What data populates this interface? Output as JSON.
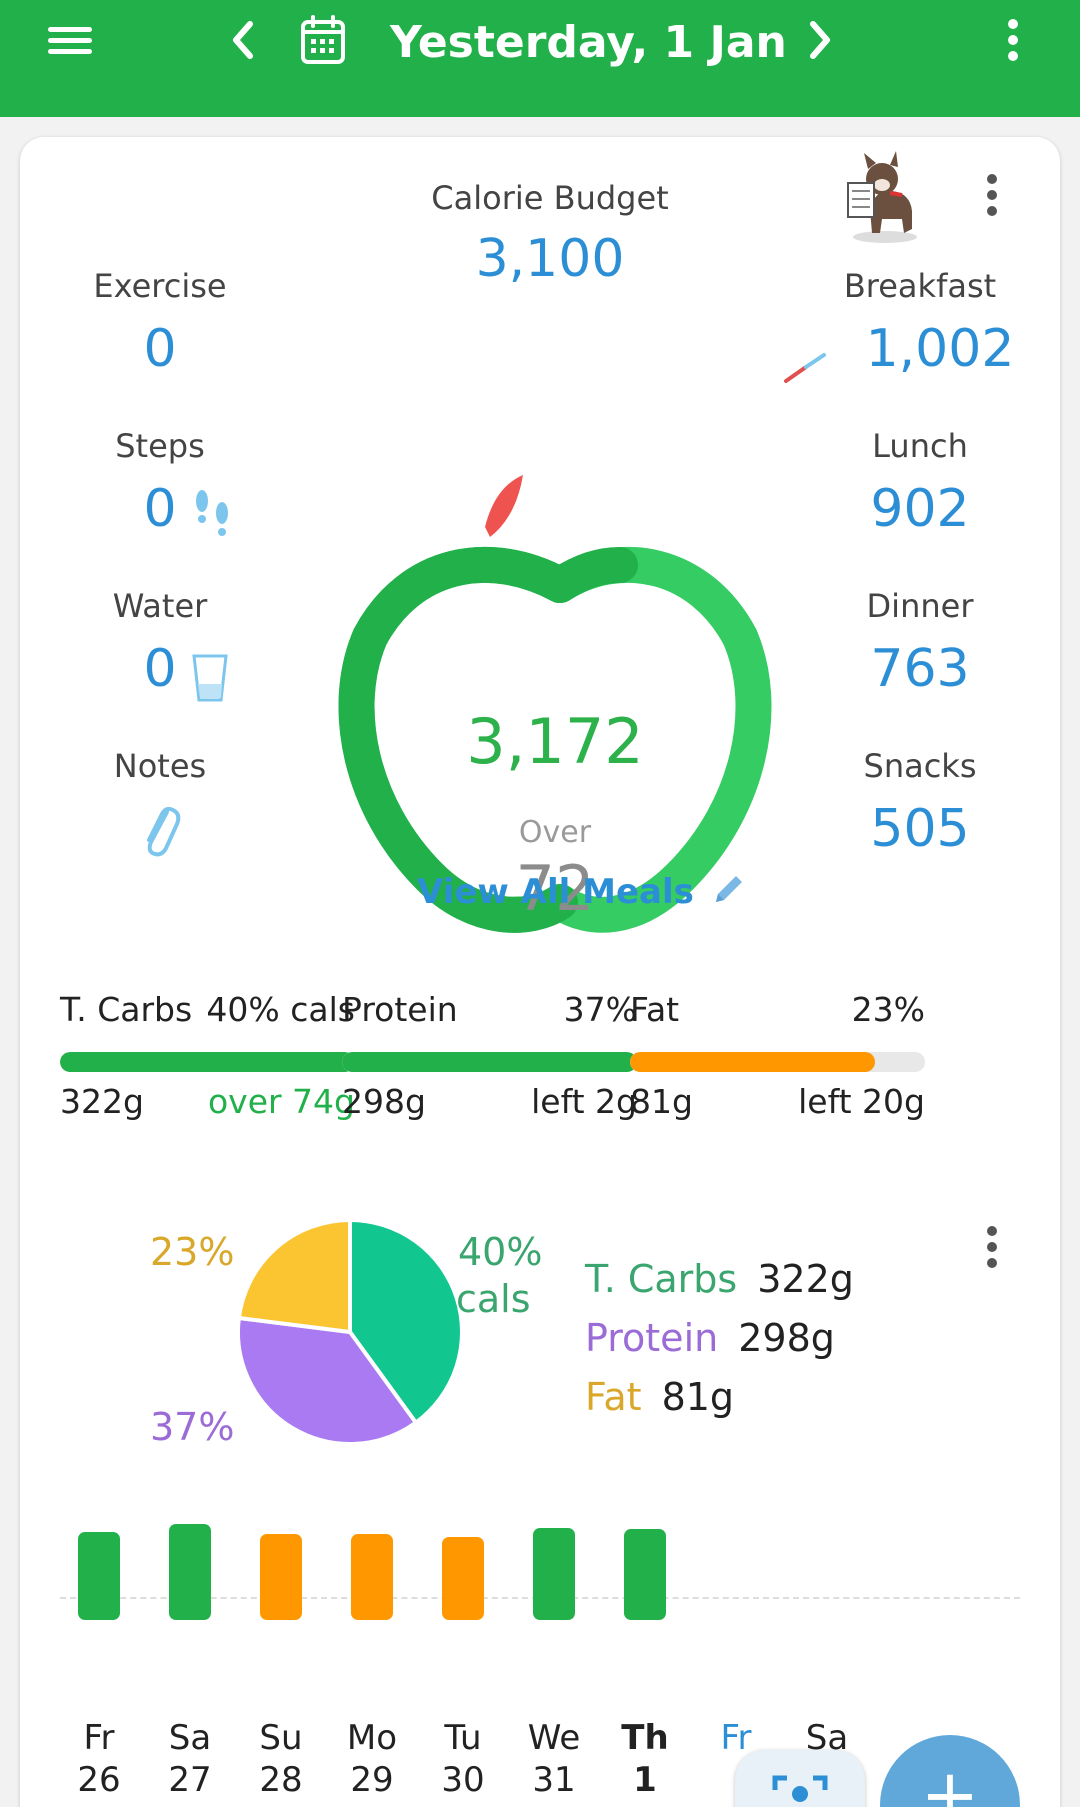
{
  "header": {
    "date_title": "Yesterday, 1 Jan",
    "icons": [
      "menu-icon",
      "chevron-left-icon",
      "calendar-icon",
      "chevron-right-icon",
      "more-vert-icon"
    ]
  },
  "budget": {
    "label": "Calorie Budget",
    "value": "3,100"
  },
  "left_stats": [
    {
      "label": "Exercise",
      "value": "0"
    },
    {
      "label": "Steps",
      "value": "0"
    },
    {
      "label": "Water",
      "value": "0"
    },
    {
      "label": "Notes",
      "value": ""
    }
  ],
  "meals": [
    {
      "label": "Breakfast",
      "value": "1,002"
    },
    {
      "label": "Lunch",
      "value": "902"
    },
    {
      "label": "Dinner",
      "value": "763"
    },
    {
      "label": "Snacks",
      "value": "505"
    }
  ],
  "apple": {
    "total": "3,172",
    "over_label": "Over",
    "over_value": "72"
  },
  "view_all": "View All Meals",
  "macros": [
    {
      "name": "T. Carbs",
      "pct": "40% cals",
      "grams": "322g",
      "status": "over 74g",
      "fill": 1.0,
      "color": "#22b04a",
      "status_color": "#22b04a"
    },
    {
      "name": "Protein",
      "pct": "37%",
      "grams": "298g",
      "status": "left 2g",
      "fill": 1.0,
      "color": "#22b04a",
      "status_color": "#222222"
    },
    {
      "name": "Fat",
      "pct": "23%",
      "grams": "81g",
      "status": "left 20g",
      "fill": 0.83,
      "color": "#ff9800",
      "status_color": "#222222"
    }
  ],
  "pie": {
    "labels": {
      "fat": "23%",
      "carbs_line1": "40%",
      "carbs_line2": "cals",
      "protein": "37%"
    },
    "legend": [
      {
        "name": "T. Carbs",
        "value": "322g",
        "color": "#3aa56f"
      },
      {
        "name": "Protein",
        "value": "298g",
        "color": "#9b6bd6"
      },
      {
        "name": "Fat",
        "value": "81g",
        "color": "#d9a82b"
      }
    ]
  },
  "chart_data": {
    "type": "pie",
    "labels": [
      "T. Carbs",
      "Protein",
      "Fat"
    ],
    "values": [
      40,
      37,
      23
    ],
    "colors": [
      "#12c690",
      "#a97af2",
      "#fbc531"
    ]
  },
  "week": {
    "days": [
      {
        "dow": "Fr",
        "date": "26",
        "level": 0.88,
        "color": "#22b04a"
      },
      {
        "dow": "Sa",
        "date": "27",
        "level": 0.96,
        "color": "#22b04a"
      },
      {
        "dow": "Su",
        "date": "28",
        "level": 0.86,
        "color": "#ff9800"
      },
      {
        "dow": "Mo",
        "date": "29",
        "level": 0.86,
        "color": "#ff9800"
      },
      {
        "dow": "Tu",
        "date": "30",
        "level": 0.83,
        "color": "#ff9800"
      },
      {
        "dow": "We",
        "date": "31",
        "level": 0.92,
        "color": "#22b04a"
      },
      {
        "dow": "Th",
        "date": "1",
        "level": 0.91,
        "color": "#22b04a"
      },
      {
        "dow": "Fr",
        "date": "",
        "level": 0,
        "color": "#2c8fd6"
      },
      {
        "dow": "Sa",
        "date": "",
        "level": 0,
        "color": "#222222"
      }
    ]
  },
  "fab": {
    "label": "+"
  }
}
